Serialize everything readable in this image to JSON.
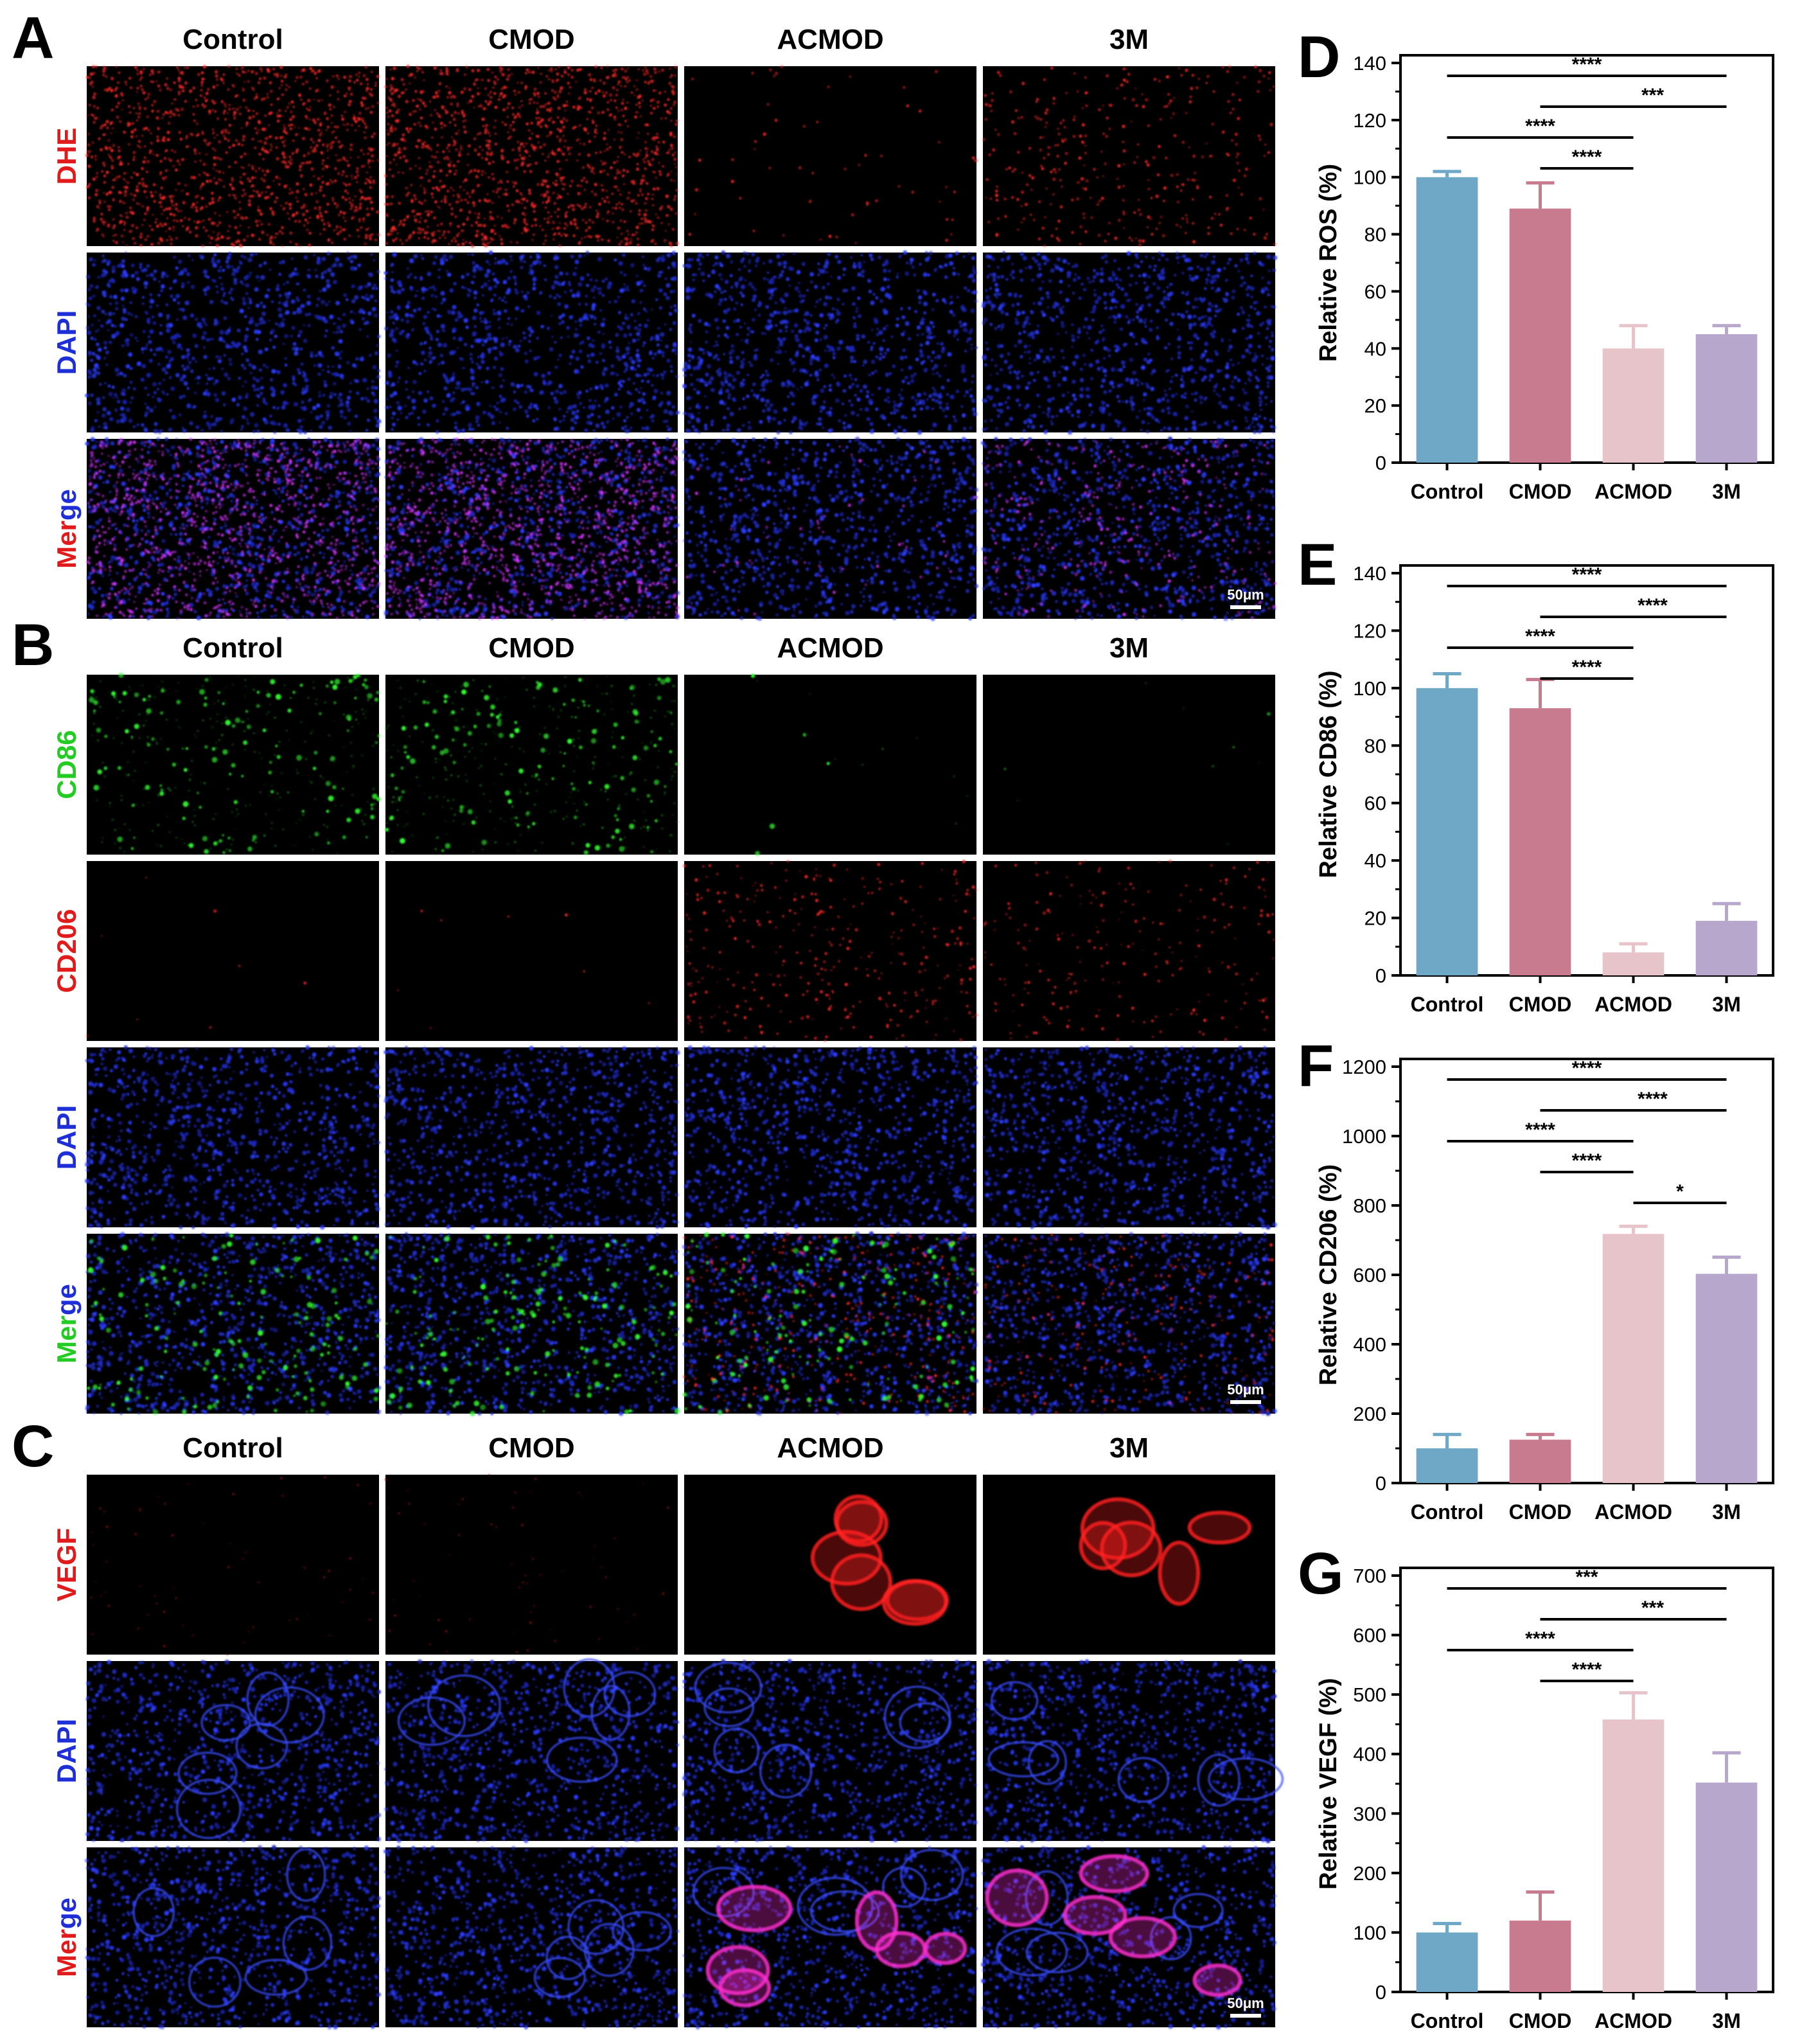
{
  "colors": {
    "control": "#6fa8c6",
    "cmod": "#c87a8e",
    "acmod": "#e7c3ca",
    "threeM": "#b7a7cc",
    "dhe": "#e11b1b",
    "dapi": "#1f2fd8",
    "cd86": "#22cc22",
    "cd206": "#e11b1b",
    "vegf": "#e11b1b",
    "merge_red": "#e11b1b",
    "merge_green": "#22cc22"
  },
  "image_panels": [
    {
      "letter": "A",
      "columns": [
        "Control",
        "CMOD",
        "ACMOD",
        "3M"
      ],
      "rows": [
        {
          "label": "DHE",
          "color": "#e11b1b",
          "stain": "dhe",
          "intensity": [
            0.9,
            0.95,
            0.04,
            0.25
          ]
        },
        {
          "label": "DAPI",
          "color": "#1f2fd8",
          "stain": "dapi",
          "intensity": [
            1,
            1,
            1,
            1
          ]
        },
        {
          "label": "Merge",
          "color": "#e11b1b",
          "stain": "merge-rb",
          "intensity": [
            0.9,
            0.95,
            0.05,
            0.25
          ]
        }
      ],
      "scale_bar": "50μm"
    },
    {
      "letter": "B",
      "columns": [
        "Control",
        "CMOD",
        "ACMOD",
        "3M"
      ],
      "rows": [
        {
          "label": "CD86",
          "color": "#22cc22",
          "stain": "cd86",
          "intensity": [
            0.85,
            0.9,
            0.03,
            0.02
          ]
        },
        {
          "label": "CD206",
          "color": "#e11b1b",
          "stain": "cd206",
          "intensity": [
            0.02,
            0.02,
            0.8,
            0.55
          ]
        },
        {
          "label": "DAPI",
          "color": "#1f2fd8",
          "stain": "dapi",
          "intensity": [
            1,
            1,
            1,
            1
          ]
        },
        {
          "label": "Merge",
          "color": "#22cc22",
          "stain": "merge-gb",
          "intensity": [
            0.85,
            0.9,
            0.8,
            0.55
          ]
        }
      ],
      "scale_bar": "50μm"
    },
    {
      "letter": "C",
      "columns": [
        "Control",
        "CMOD",
        "ACMOD",
        "3M"
      ],
      "rows": [
        {
          "label": "VEGF",
          "color": "#e11b1b",
          "stain": "vegf",
          "intensity": [
            0.08,
            0.12,
            0.95,
            0.75
          ]
        },
        {
          "label": "DAPI",
          "color": "#1f2fd8",
          "stain": "dapi",
          "intensity": [
            1,
            1,
            1,
            1
          ]
        },
        {
          "label": "Merge",
          "color": "#e11b1b",
          "stain": "merge-rb",
          "intensity": [
            0.08,
            0.12,
            0.95,
            0.75
          ]
        }
      ],
      "scale_bar": "50μm"
    }
  ],
  "chart_data": [
    {
      "letter": "D",
      "type": "bar",
      "categories": [
        "Control",
        "CMOD",
        "ACMOD",
        "3M"
      ],
      "values": [
        100,
        89,
        40,
        45
      ],
      "errors": [
        2,
        9,
        8,
        3
      ],
      "ylabel": "Relative ROS (%)",
      "ylim": [
        0,
        140
      ],
      "yticks": [
        0,
        20,
        40,
        60,
        80,
        100,
        120,
        140
      ],
      "significance": [
        {
          "from": 0,
          "to": 3,
          "label": "****"
        },
        {
          "from": 1,
          "to": 3,
          "label": "***"
        },
        {
          "from": 0,
          "to": 2,
          "label": "****"
        },
        {
          "from": 1,
          "to": 2,
          "label": "****"
        }
      ]
    },
    {
      "letter": "E",
      "type": "bar",
      "categories": [
        "Control",
        "CMOD",
        "ACMOD",
        "3M"
      ],
      "values": [
        100,
        93,
        8,
        19
      ],
      "errors": [
        5,
        10,
        3,
        6
      ],
      "ylabel": "Relative CD86 (%)",
      "ylim": [
        0,
        140
      ],
      "yticks": [
        0,
        20,
        40,
        60,
        80,
        100,
        120,
        140
      ],
      "significance": [
        {
          "from": 0,
          "to": 3,
          "label": "****"
        },
        {
          "from": 1,
          "to": 3,
          "label": "****"
        },
        {
          "from": 0,
          "to": 2,
          "label": "****"
        },
        {
          "from": 1,
          "to": 2,
          "label": "****"
        }
      ]
    },
    {
      "letter": "F",
      "type": "bar",
      "categories": [
        "Control",
        "CMOD",
        "ACMOD",
        "3M"
      ],
      "values": [
        100,
        125,
        718,
        603
      ],
      "errors": [
        40,
        15,
        22,
        48
      ],
      "ylabel": "Relative CD206 (%)",
      "ylim": [
        0,
        1200
      ],
      "yticks": [
        0,
        200,
        400,
        600,
        800,
        1000,
        1200
      ],
      "significance": [
        {
          "from": 0,
          "to": 3,
          "label": "****"
        },
        {
          "from": 1,
          "to": 3,
          "label": "****"
        },
        {
          "from": 0,
          "to": 2,
          "label": "****"
        },
        {
          "from": 1,
          "to": 2,
          "label": "****"
        },
        {
          "from": 2,
          "to": 3,
          "label": "*"
        }
      ]
    },
    {
      "letter": "G",
      "type": "bar",
      "categories": [
        "Control",
        "CMOD",
        "ACMOD",
        "3M"
      ],
      "values": [
        100,
        120,
        458,
        352
      ],
      "errors": [
        15,
        48,
        45,
        50
      ],
      "ylabel": "Relative VEGF (%)",
      "ylim": [
        0,
        700
      ],
      "yticks": [
        0,
        100,
        200,
        300,
        400,
        500,
        600,
        700
      ],
      "significance": [
        {
          "from": 0,
          "to": 3,
          "label": "***"
        },
        {
          "from": 1,
          "to": 3,
          "label": "***"
        },
        {
          "from": 0,
          "to": 2,
          "label": "****"
        },
        {
          "from": 1,
          "to": 2,
          "label": "****"
        }
      ]
    }
  ]
}
